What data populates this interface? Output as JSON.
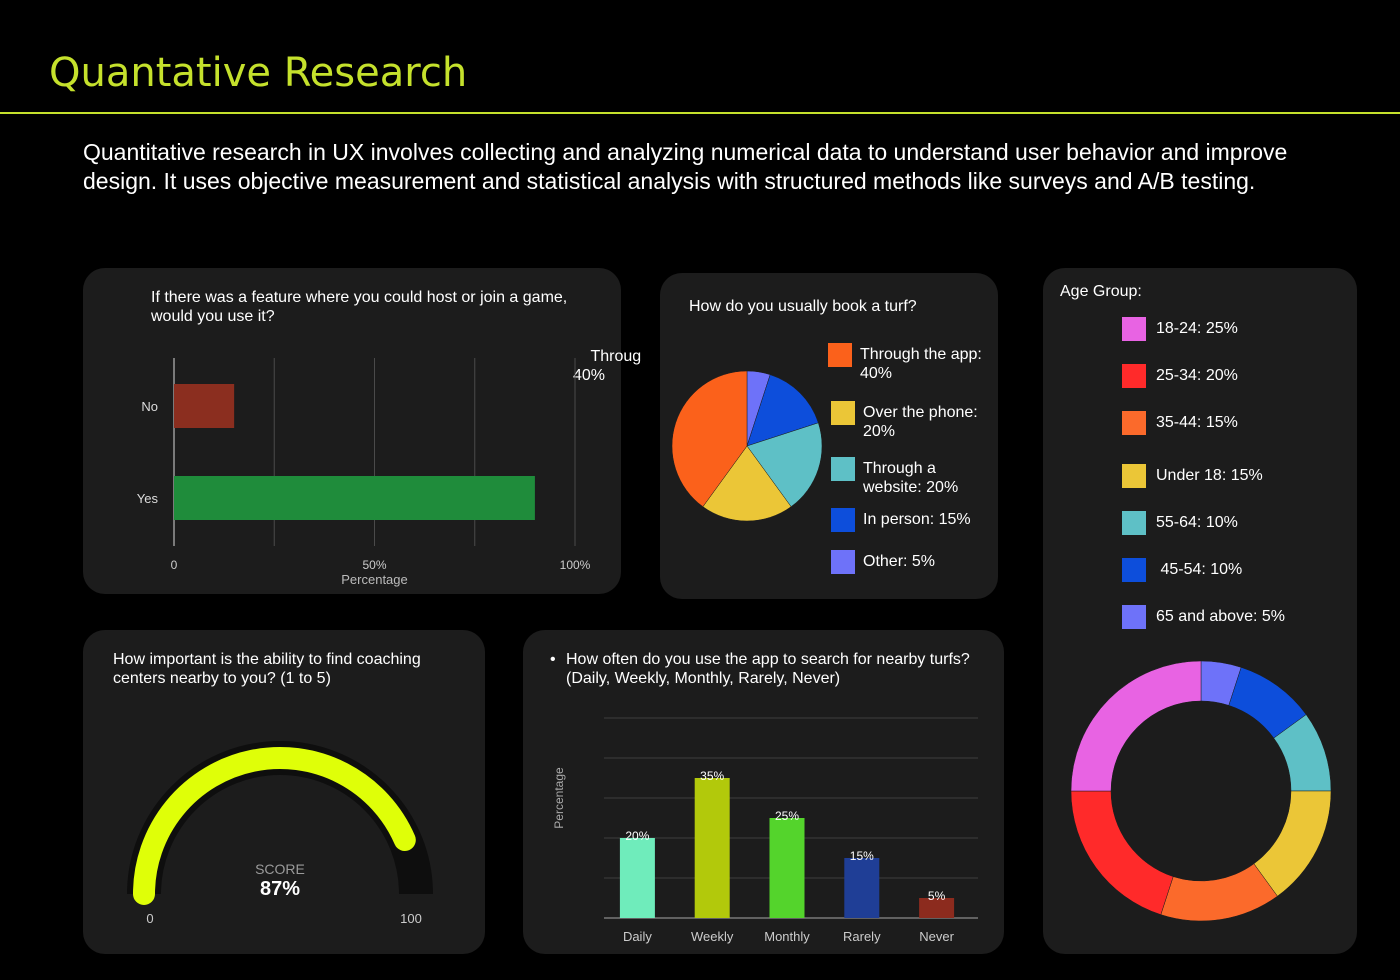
{
  "page": {
    "title": "Quantative Research",
    "intro": "Quantitative research in UX involves collecting and analyzing numerical data to understand user behavior and improve design. It uses objective measurement and statistical analysis with structured methods like surveys and A/B testing."
  },
  "colors": {
    "accent": "#c5e12c",
    "card": "#1c1c1c",
    "background": "#000000"
  },
  "chart_data": [
    {
      "id": "host_join",
      "type": "bar",
      "orientation": "horizontal",
      "title": "If there was a feature where you could host or join a game, would you use it?",
      "categories": [
        "No",
        "Yes"
      ],
      "values": [
        15,
        90
      ],
      "colors": [
        "#8b2e1f",
        "#1f8c3b"
      ],
      "xlabel": "Percentage",
      "xlim": [
        0,
        100
      ],
      "ticks": [
        "0",
        "50%",
        "100%"
      ],
      "annotation": "Throug\n40%"
    },
    {
      "id": "booking",
      "type": "pie",
      "title": "How do you usually book a turf?",
      "slices": [
        {
          "label": "Through the app: 40%",
          "value": 40,
          "color": "#fb611b"
        },
        {
          "label": "Over the phone: 20%",
          "value": 20,
          "color": "#ebc637"
        },
        {
          "label": "Through a website: 20%",
          "value": 20,
          "color": "#5ec0c6"
        },
        {
          "label": "In person: 15%",
          "value": 15,
          "color": "#0d4edb"
        },
        {
          "label": "Other: 5%",
          "value": 5,
          "color": "#6e72f9"
        }
      ]
    },
    {
      "id": "coaching",
      "type": "gauge",
      "title": "How important is the ability to find coaching centers nearby to you? (1 to 5)",
      "label": "SCORE",
      "value": 87,
      "display": "87%",
      "min": 0,
      "max": 100,
      "min_label": "0",
      "max_label": "100",
      "color": "#dfff08"
    },
    {
      "id": "frequency",
      "type": "bar",
      "title": "How often do you use the app to search for nearby turfs? (Daily, Weekly, Monthly, Rarely, Never)",
      "categories": [
        "Daily",
        "Weekly",
        "Monthly",
        "Rarely",
        "Never"
      ],
      "values": [
        20,
        35,
        25,
        15,
        5
      ],
      "labels": [
        "20%",
        "35%",
        "25%",
        "15%",
        "5%"
      ],
      "colors": [
        "#6fecbb",
        "#b2c90b",
        "#54d42c",
        "#1f3e96",
        "#8c2b1e"
      ],
      "ylabel": "Percentage",
      "ylim": [
        0,
        50
      ]
    },
    {
      "id": "age",
      "type": "donut",
      "title": "Age Group:",
      "slices": [
        {
          "label": "18-24: 25%",
          "value": 25,
          "color": "#e863e3"
        },
        {
          "label": "25-34: 20%",
          "value": 20,
          "color": "#ff2a2a"
        },
        {
          "label": "35-44: 15%",
          "value": 15,
          "color": "#fb6a2b"
        },
        {
          "label": "Under 18: 15%",
          "value": 15,
          "color": "#ebc637"
        },
        {
          "label": "55-64: 10%",
          "value": 10,
          "color": "#5ec0c6"
        },
        {
          "label": " 45-54: 10%",
          "value": 10,
          "color": "#0d4edb"
        },
        {
          "label": "65 and above: 5%",
          "value": 5,
          "color": "#6e72f9"
        }
      ]
    }
  ]
}
